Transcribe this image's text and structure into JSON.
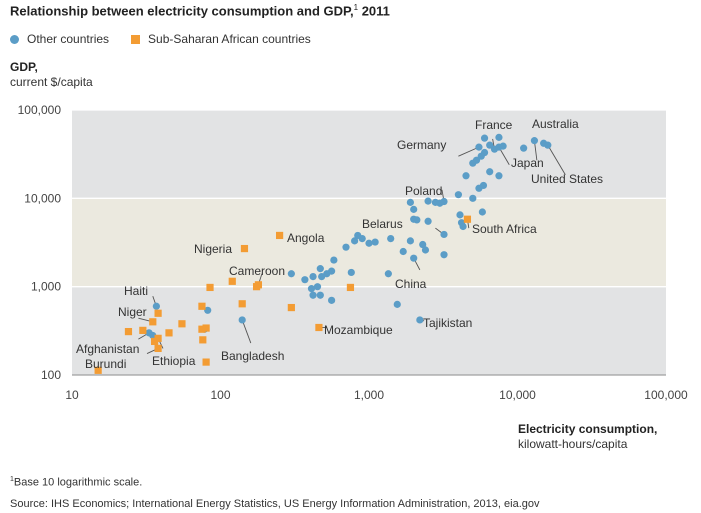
{
  "header": {
    "title": "Relationship between electricity consumption and GDP,",
    "title_footnote": "1",
    "title_year": "2011"
  },
  "legend": {
    "other_label": "Other countries",
    "ssa_label": "Sub-Saharan African countries"
  },
  "y_axis_title": {
    "bold": "GDP,",
    "unit": "current $/capita"
  },
  "x_axis_title": {
    "bold": "Electricity consumption,",
    "unit": "kilowatt-hours/capita"
  },
  "footnote": {
    "marker": "1",
    "text": "Base 10 logarithmic scale."
  },
  "source": "Source: IHS Economics; International Energy Statistics, US Energy Information Administration, 2013, eia.gov",
  "colors": {
    "other": "#5b9dc7",
    "ssa": "#f39c33",
    "plot_bg": "#e2e3e4",
    "band_bg": "#ebe9df",
    "grid": "#ffffff",
    "leader": "#555555"
  },
  "chart_data": {
    "type": "scatter",
    "x_scale": "log",
    "y_scale": "log",
    "xlim": [
      10,
      100000
    ],
    "ylim": [
      100,
      100000
    ],
    "highlight_band_y": [
      1000,
      10000
    ],
    "grid": true,
    "legend_position": "top-left",
    "x_ticks": [
      {
        "value": 10,
        "label": "10"
      },
      {
        "value": 100,
        "label": "100"
      },
      {
        "value": 1000,
        "label": "1,000"
      },
      {
        "value": 10000,
        "label": "10,000"
      },
      {
        "value": 100000,
        "label": "100,000"
      }
    ],
    "y_ticks": [
      {
        "value": 100,
        "label": "100"
      },
      {
        "value": 1000,
        "label": "1,000"
      },
      {
        "value": 10000,
        "label": "10,000"
      },
      {
        "value": 100000,
        "label": "100,000"
      }
    ],
    "series": [
      {
        "name": "Other countries",
        "marker": "circle",
        "points": [
          [
            6000,
            48000
          ],
          [
            7500,
            49000
          ],
          [
            13000,
            45000
          ],
          [
            15000,
            42000
          ],
          [
            16000,
            40000
          ],
          [
            11000,
            37000
          ],
          [
            6500,
            40000
          ],
          [
            7000,
            36000
          ],
          [
            7500,
            38000
          ],
          [
            8000,
            39000
          ],
          [
            5500,
            38000
          ],
          [
            6000,
            33000
          ],
          [
            5700,
            30000
          ],
          [
            5300,
            27000
          ],
          [
            5000,
            25000
          ],
          [
            6500,
            20000
          ],
          [
            7500,
            18000
          ],
          [
            4500,
            18000
          ],
          [
            5900,
            14000
          ],
          [
            5500,
            13000
          ],
          [
            4000,
            11000
          ],
          [
            3200,
            9200
          ],
          [
            3000,
            8800
          ],
          [
            2800,
            9000
          ],
          [
            2500,
            9300
          ],
          [
            1900,
            9000
          ],
          [
            2000,
            7500
          ],
          [
            5000,
            10000
          ],
          [
            4100,
            6500
          ],
          [
            5800,
            7000
          ],
          [
            4200,
            5300
          ],
          [
            4300,
            4800
          ],
          [
            3200,
            3900
          ],
          [
            2000,
            5800
          ],
          [
            2100,
            5700
          ],
          [
            2500,
            5500
          ],
          [
            1900,
            3300
          ],
          [
            2300,
            3000
          ],
          [
            2400,
            2600
          ],
          [
            3200,
            2300
          ],
          [
            1700,
            2500
          ],
          [
            2000,
            2100
          ],
          [
            1400,
            3500
          ],
          [
            1100,
            3200
          ],
          [
            1000,
            3100
          ],
          [
            900,
            3500
          ],
          [
            840,
            3800
          ],
          [
            800,
            3300
          ],
          [
            700,
            2800
          ],
          [
            580,
            2000
          ],
          [
            520,
            1400
          ],
          [
            480,
            1300
          ],
          [
            560,
            1500
          ],
          [
            470,
            1600
          ],
          [
            420,
            1300
          ],
          [
            450,
            1000
          ],
          [
            410,
            950
          ],
          [
            420,
            800
          ],
          [
            470,
            800
          ],
          [
            560,
            700
          ],
          [
            760,
            1450
          ],
          [
            1350,
            1400
          ],
          [
            300,
            1400
          ],
          [
            370,
            1200
          ],
          [
            1550,
            630
          ],
          [
            2200,
            420
          ],
          [
            140,
            420
          ],
          [
            82,
            540
          ],
          [
            78,
            330
          ],
          [
            37,
            600
          ],
          [
            33,
            300
          ],
          [
            35,
            280
          ]
        ]
      },
      {
        "name": "Sub-Saharan African countries",
        "marker": "square",
        "points": [
          [
            4600,
            5800
          ],
          [
            250,
            3800
          ],
          [
            145,
            2700
          ],
          [
            180,
            1050
          ],
          [
            175,
            1000
          ],
          [
            120,
            1150
          ],
          [
            85,
            980
          ],
          [
            750,
            980
          ],
          [
            300,
            580
          ],
          [
            140,
            640
          ],
          [
            75,
            600
          ],
          [
            38,
            500
          ],
          [
            35,
            400
          ],
          [
            55,
            380
          ],
          [
            80,
            340
          ],
          [
            75,
            330
          ],
          [
            45,
            300
          ],
          [
            38,
            260
          ],
          [
            76,
            250
          ],
          [
            36,
            240
          ],
          [
            24,
            310
          ],
          [
            30,
            320
          ],
          [
            38,
            200
          ],
          [
            80,
            140
          ],
          [
            460,
            345
          ],
          [
            15,
            113
          ]
        ]
      }
    ],
    "annotations": [
      {
        "text": "Australia"
      },
      {
        "text": "France"
      },
      {
        "text": "Germany"
      },
      {
        "text": "Japan"
      },
      {
        "text": "United States"
      },
      {
        "text": "Poland"
      },
      {
        "text": "Belarus"
      },
      {
        "text": "South Africa"
      },
      {
        "text": "Nigeria"
      },
      {
        "text": "Angola"
      },
      {
        "text": "Cameroon"
      },
      {
        "text": "China"
      },
      {
        "text": "Tajikistan"
      },
      {
        "text": "Mozambique"
      },
      {
        "text": "Bangladesh"
      },
      {
        "text": "Haiti"
      },
      {
        "text": "Niger"
      },
      {
        "text": "Afghanistan"
      },
      {
        "text": "Burundi"
      },
      {
        "text": "Ethiopia"
      }
    ]
  }
}
